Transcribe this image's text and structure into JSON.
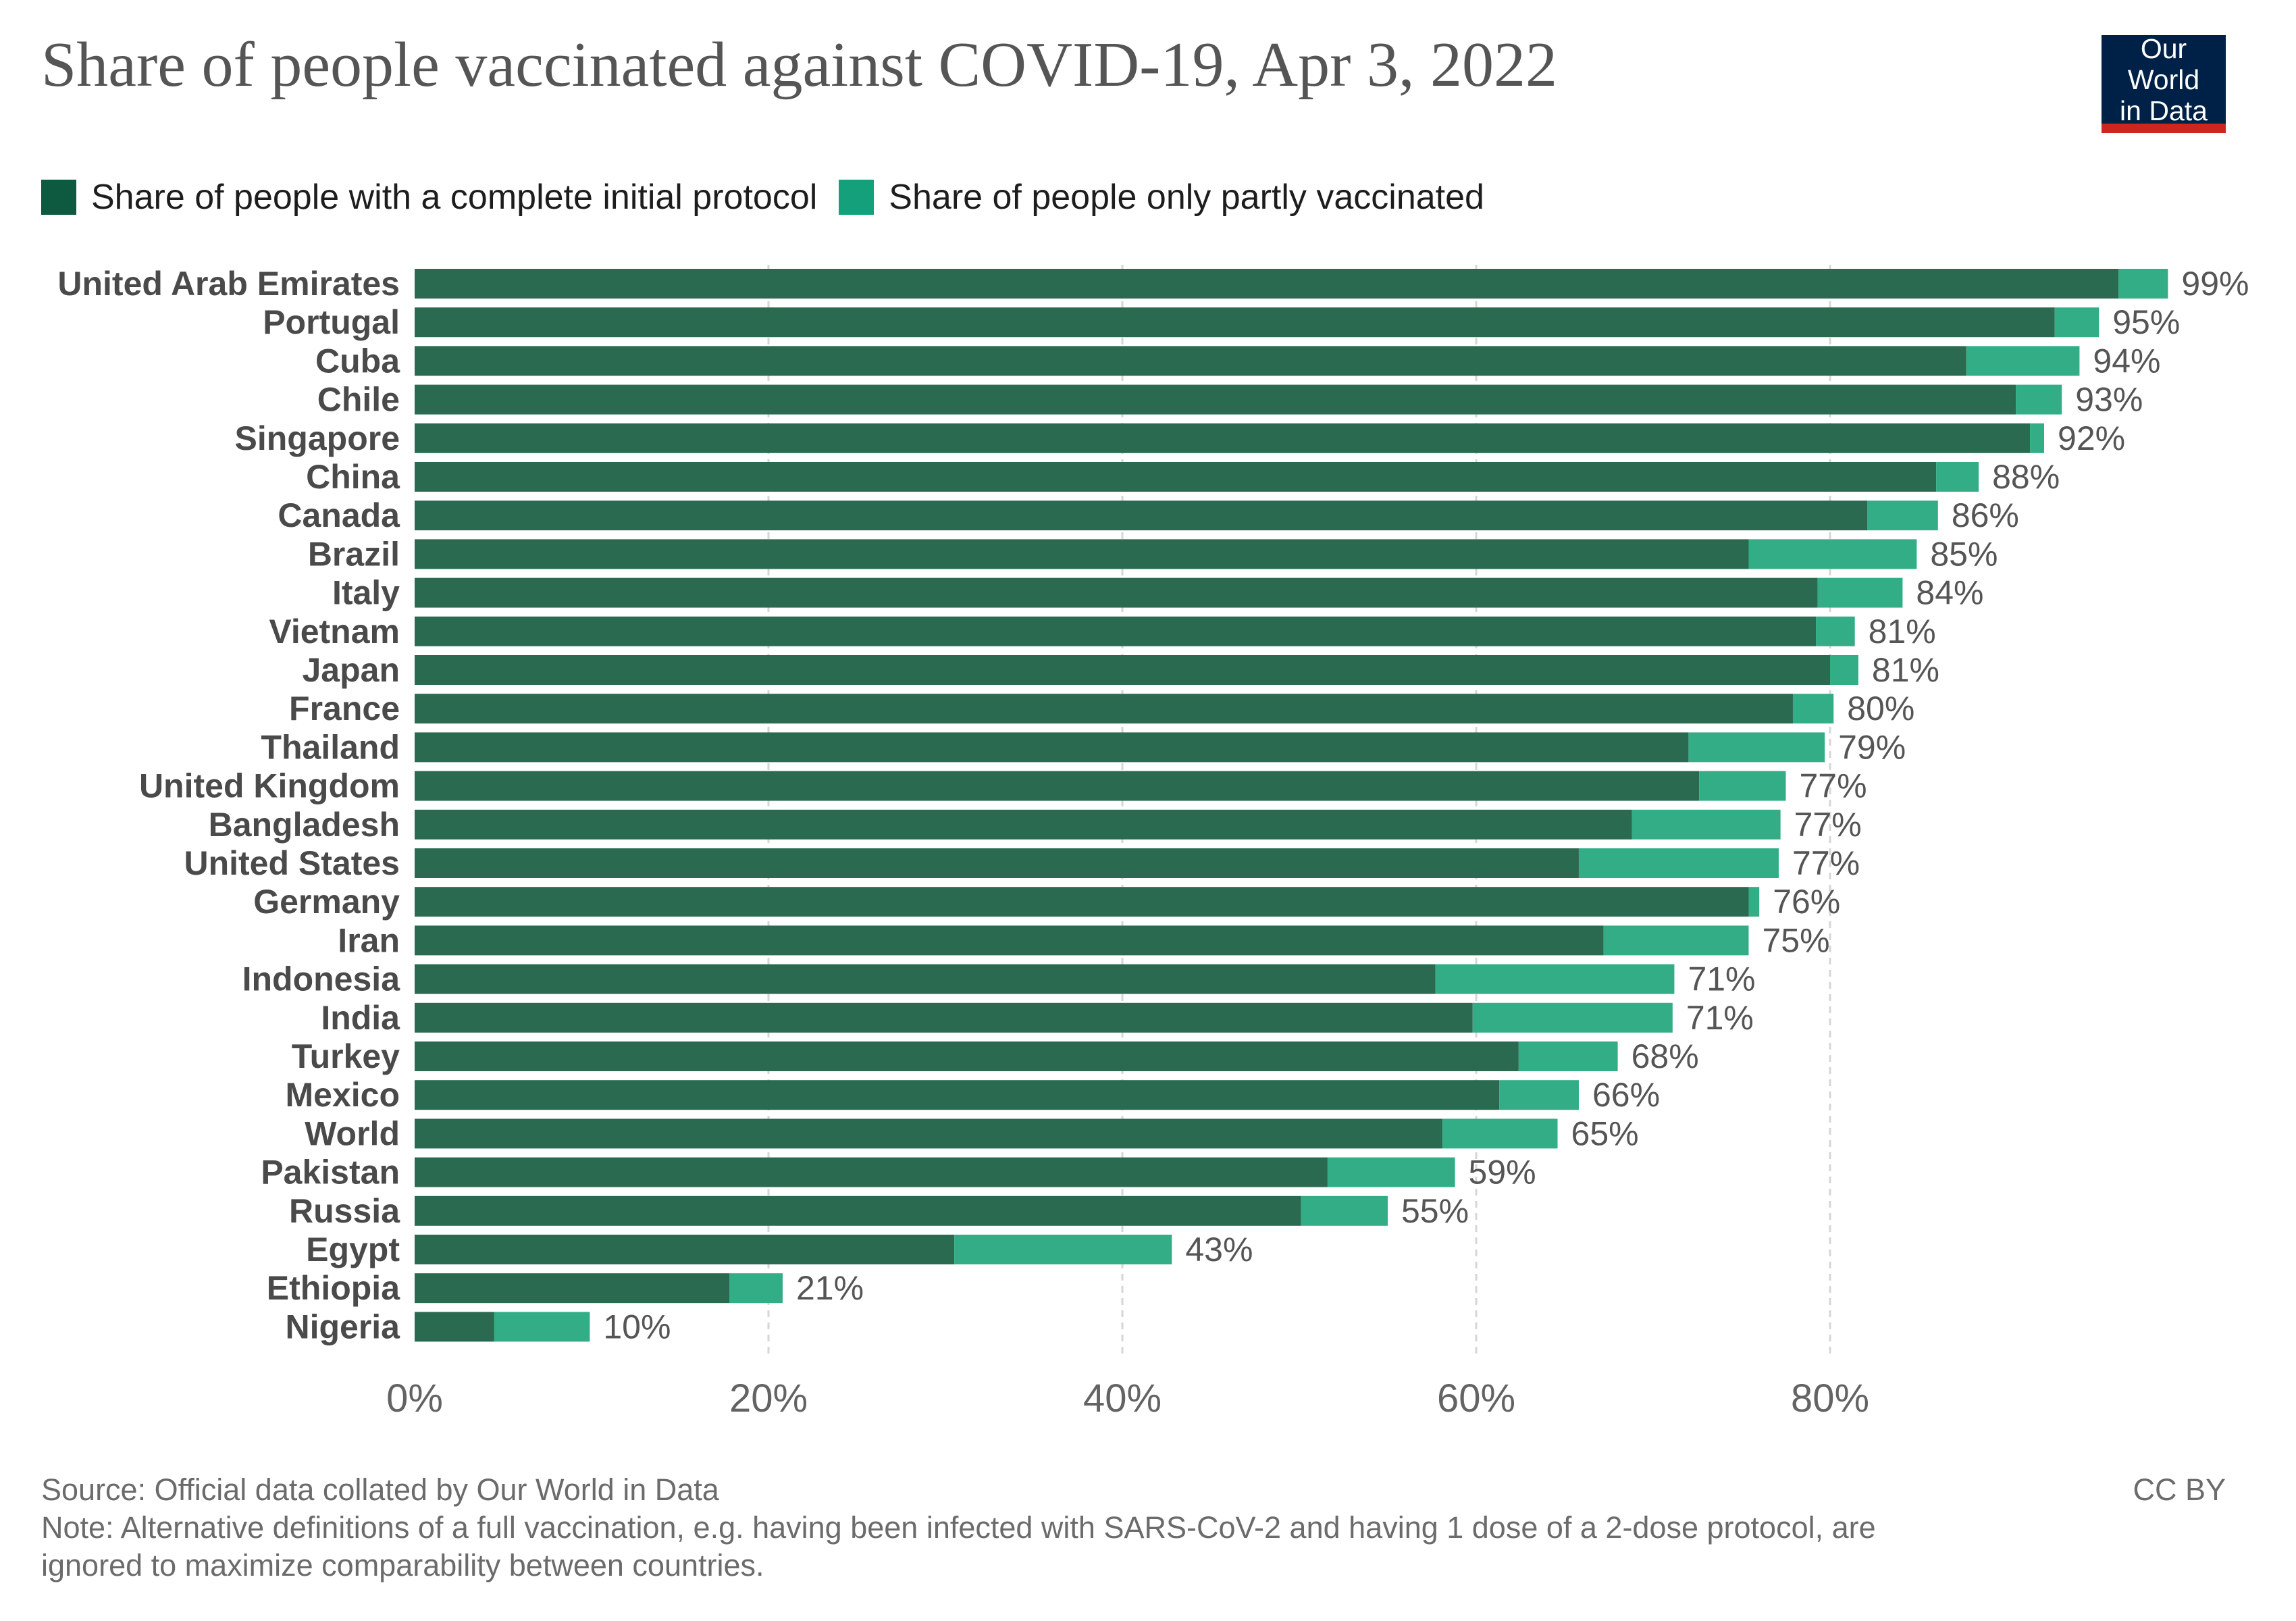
{
  "header": {
    "title": "Share of people vaccinated against COVID-19, Apr 3, 2022",
    "logo_line1": "Our World",
    "logo_line2": "in Data"
  },
  "footer": {
    "source": "Source: Official data collated by Our World in Data",
    "note_line1": "Note: Alternative definitions of a full vaccination, e.g. having been infected with SARS-CoV-2 and having 1 dose of a 2-dose protocol, are",
    "note_line2": "ignored to maximize comparability between countries.",
    "license": "CC BY"
  },
  "colors": {
    "complete": "#2a6a50",
    "partial": "#33ad86",
    "legend_complete": "#0e5a40",
    "legend_partial": "#14a07a",
    "gridline": "#d6d6d6",
    "axis_label": "#636363",
    "category_label": "#4a4a4a",
    "value_label": "#555555"
  },
  "chart_data": {
    "type": "bar",
    "orientation": "horizontal",
    "stacked": true,
    "title": "Share of people vaccinated against COVID-19, Apr 3, 2022",
    "xlabel": "",
    "ylabel": "",
    "xlim": [
      0,
      100
    ],
    "xticks": [
      0,
      20,
      40,
      60,
      80
    ],
    "xtick_labels": [
      "0%",
      "20%",
      "40%",
      "60%",
      "80%"
    ],
    "grid": "vertical dashed",
    "legend_position": "top-left",
    "categories": [
      "United Arab Emirates",
      "Portugal",
      "Cuba",
      "Chile",
      "Singapore",
      "China",
      "Canada",
      "Brazil",
      "Italy",
      "Vietnam",
      "Japan",
      "France",
      "Thailand",
      "United Kingdom",
      "Bangladesh",
      "United States",
      "Germany",
      "Iran",
      "Indonesia",
      "India",
      "Turkey",
      "Mexico",
      "World",
      "Pakistan",
      "Russia",
      "Egypt",
      "Ethiopia",
      "Nigeria"
    ],
    "series": [
      {
        "name": "Share of people with a complete initial protocol",
        "values": [
          96.3,
          92.7,
          87.7,
          90.5,
          91.3,
          86.0,
          82.1,
          75.4,
          79.3,
          79.2,
          80.0,
          77.9,
          72.0,
          72.6,
          68.8,
          65.8,
          75.4,
          67.2,
          57.7,
          59.8,
          62.4,
          61.3,
          58.1,
          51.6,
          50.1,
          30.5,
          17.8,
          4.5
        ]
      },
      {
        "name": "Share of people only partly vaccinated",
        "values": [
          2.8,
          2.5,
          6.4,
          2.6,
          0.8,
          2.4,
          4.0,
          9.5,
          4.8,
          2.2,
          1.6,
          2.3,
          7.7,
          4.9,
          8.4,
          11.3,
          0.6,
          8.2,
          13.5,
          11.3,
          5.6,
          4.5,
          6.5,
          7.2,
          4.9,
          12.3,
          3.0,
          5.4
        ]
      }
    ],
    "total_labels": [
      "99%",
      "95%",
      "94%",
      "93%",
      "92%",
      "88%",
      "86%",
      "85%",
      "84%",
      "81%",
      "81%",
      "80%",
      "79%",
      "77%",
      "77%",
      "77%",
      "76%",
      "75%",
      "71%",
      "71%",
      "68%",
      "66%",
      "65%",
      "59%",
      "55%",
      "43%",
      "21%",
      "10%"
    ]
  }
}
